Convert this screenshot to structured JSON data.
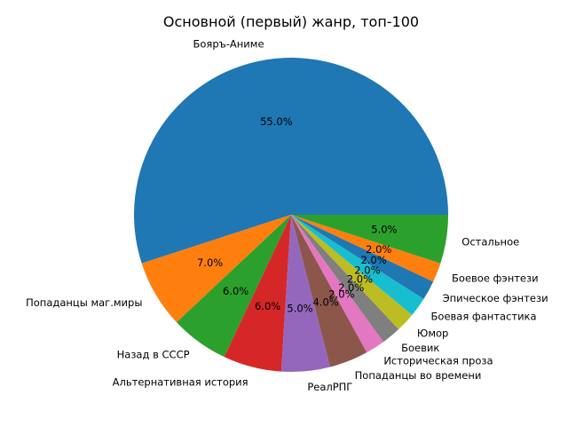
{
  "chart_data": {
    "type": "pie",
    "title": "Основной (первый) жанр, топ-100",
    "start_angle_deg": 0,
    "direction": "counterclockwise",
    "slices": [
      {
        "label": "Бояръ-Аниме",
        "value": 55.0,
        "pct_label": "55.0%",
        "color": "#1f77b4"
      },
      {
        "label": "Попаданцы маг.миры",
        "value": 7.0,
        "pct_label": "7.0%",
        "color": "#ff7f0e"
      },
      {
        "label": "Назад в СССР",
        "value": 6.0,
        "pct_label": "6.0%",
        "color": "#2ca02c"
      },
      {
        "label": "Альтернативная история",
        "value": 6.0,
        "pct_label": "6.0%",
        "color": "#d62728"
      },
      {
        "label": "РеалРПГ",
        "value": 5.0,
        "pct_label": "5.0%",
        "color": "#9467bd"
      },
      {
        "label": "Попаданцы во времени",
        "value": 4.0,
        "pct_label": "4.0%",
        "color": "#8c564b"
      },
      {
        "label": "Историческая проза",
        "value": 2.0,
        "pct_label": "2.0%",
        "color": "#e377c2"
      },
      {
        "label": "Боевик",
        "value": 2.0,
        "pct_label": "2.0%",
        "color": "#7f7f7f"
      },
      {
        "label": "Юмор",
        "value": 2.0,
        "pct_label": "2.0%",
        "color": "#bcbd22"
      },
      {
        "label": "Боевая фантастика",
        "value": 2.0,
        "pct_label": "2.0%",
        "color": "#17becf"
      },
      {
        "label": "Эпическое фэнтези",
        "value": 2.0,
        "pct_label": "2.0%",
        "color": "#1f77b4"
      },
      {
        "label": "Боевое фэнтези",
        "value": 2.0,
        "pct_label": "2.0%",
        "color": "#ff7f0e"
      },
      {
        "label": "Остальное",
        "value": 5.0,
        "pct_label": "5.0%",
        "color": "#2ca02c"
      }
    ]
  }
}
